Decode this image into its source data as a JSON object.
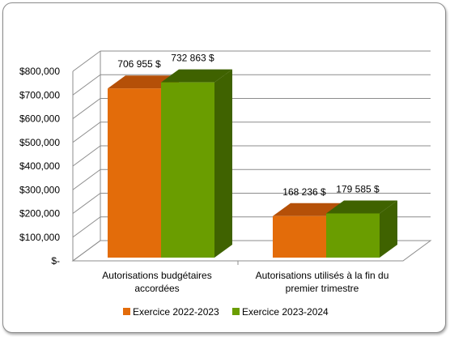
{
  "chart_data": {
    "type": "bar",
    "style": "3d-clustered-column",
    "categories": [
      [
        "Autorisations budgétaires",
        "accordées"
      ],
      [
        "Autorisations utilisés à la fin du",
        "premier trimestre"
      ]
    ],
    "series": [
      {
        "name": "Exercice 2022-2023",
        "values": [
          706955,
          168236
        ],
        "labels": [
          "706 955 $",
          "168 236 $"
        ],
        "color": "#E36C0A",
        "side_color": "#B55008"
      },
      {
        "name": "Exercice 2023-2024",
        "values": [
          732863,
          179585
        ],
        "labels": [
          "732 863 $",
          "179 585 $"
        ],
        "color": "#6A9D00",
        "side_color": "#3F6200"
      }
    ],
    "ylim": [
      0,
      800000
    ],
    "y_ticks": [
      0,
      100000,
      200000,
      300000,
      400000,
      500000,
      600000,
      700000,
      800000
    ],
    "y_tick_labels": [
      "$-",
      "$100,000",
      "$200,000",
      "$300,000",
      "$400,000",
      "$500,000",
      "$600,000",
      "$700,000",
      "$800,000"
    ],
    "grid": true,
    "legend_position": "bottom",
    "colors": {
      "gridline": "#8C8C8C",
      "frame_border": "#8C8C8C"
    }
  }
}
